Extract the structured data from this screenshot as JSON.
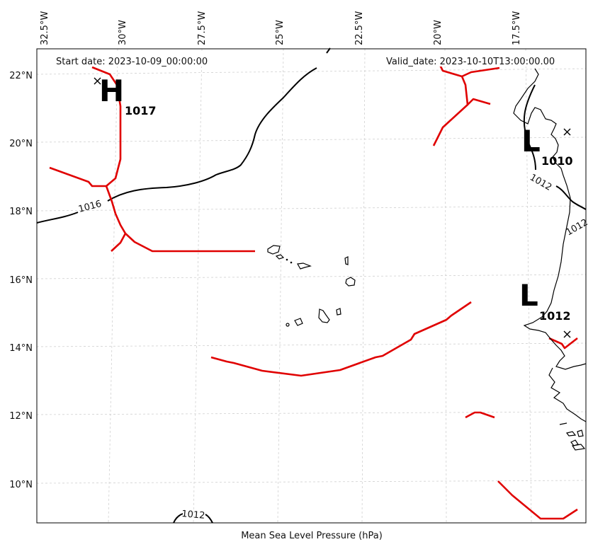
{
  "header": {
    "start_date": "Start date: 2023-10-09_00:00:00",
    "valid_date": "Valid_date: 2023-10-10T13:00:00.00"
  },
  "footer": {
    "label": "Mean Sea Level Pressure (hPa)"
  },
  "longitude_labels": [
    "32.5°W",
    "30°W",
    "27.5°W",
    "25°W",
    "22.5°W",
    "20°W",
    "17.5°W"
  ],
  "latitude_labels": [
    "22°N",
    "20°N",
    "18°N",
    "16°N",
    "14°N",
    "12°N",
    "10°N"
  ],
  "isobar_labels": [
    "1016",
    "1012",
    "1012",
    "1012"
  ],
  "pressure_centers": [
    {
      "type": "H",
      "value": "1017"
    },
    {
      "type": "L",
      "value": "1010"
    },
    {
      "type": "L",
      "value": "1012"
    }
  ],
  "colors": {
    "isobar": "#000000",
    "front": "#e00000",
    "grid": "#d0d0d0"
  }
}
